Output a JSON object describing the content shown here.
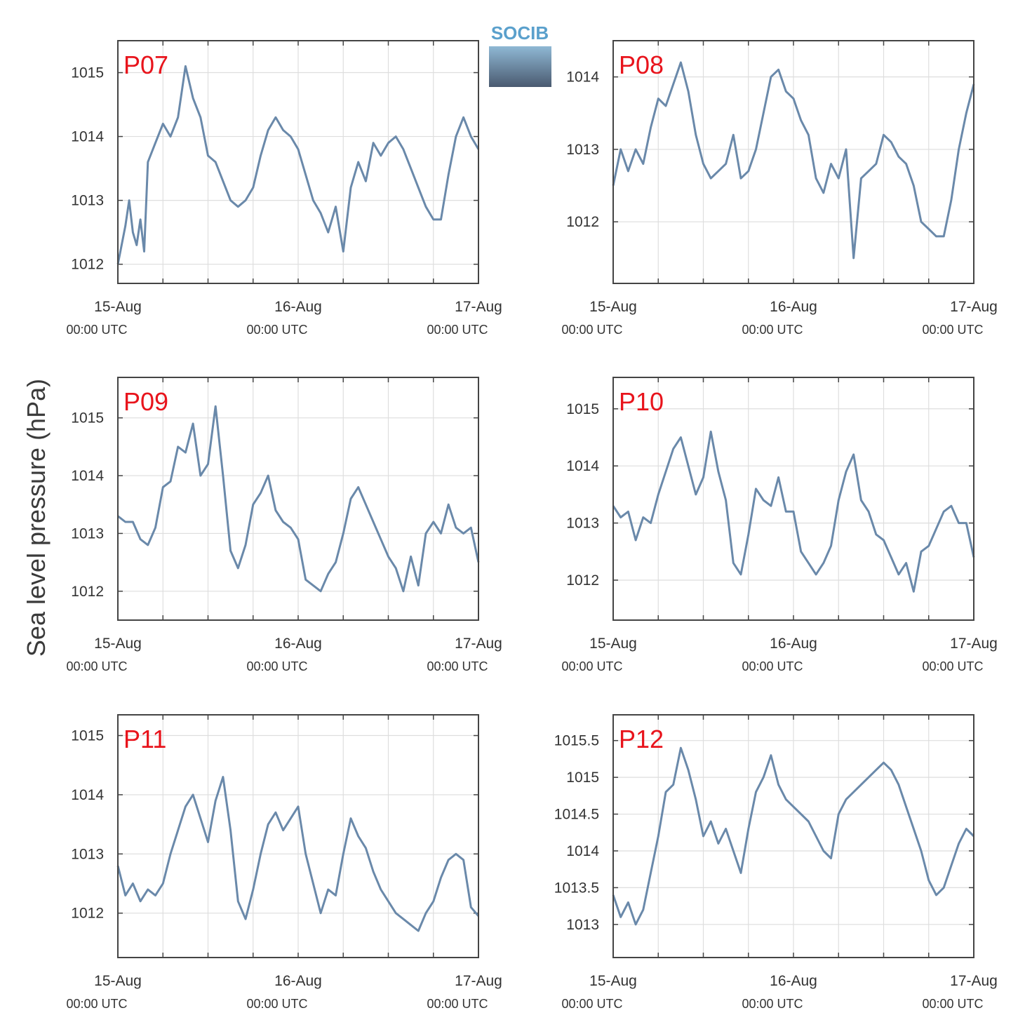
{
  "figure": {
    "ylabel": "Sea level pressure (hPa)",
    "logo_text": "SOCIB",
    "line_color": "#6a89aa",
    "label_color": "#e8141c",
    "grid_color": "#dedede"
  },
  "chart_data": [
    {
      "type": "line",
      "title": "P07",
      "xlabel": "",
      "ylabel": "Sea level pressure (hPa)",
      "xlim": [
        0,
        48
      ],
      "ylim": [
        1011.7,
        1015.5
      ],
      "grid": true,
      "x_ticks": [
        {
          "v": 0,
          "label": "15-Aug",
          "sub": "00:00 UTC"
        },
        {
          "v": 24,
          "label": "16-Aug",
          "sub": "00:00 UTC"
        },
        {
          "v": 48,
          "label": "17-Aug",
          "sub": "00:00 UTC"
        }
      ],
      "y_ticks": [
        {
          "v": 1012,
          "label": "1012"
        },
        {
          "v": 1013,
          "label": "1013"
        },
        {
          "v": 1014,
          "label": "1014"
        },
        {
          "v": 1015,
          "label": "1015"
        }
      ],
      "series": [
        {
          "x": [
            0,
            1,
            1.5,
            2,
            2.5,
            3,
            3.5,
            4,
            5,
            6,
            7,
            8,
            9,
            10,
            11,
            12,
            13,
            14,
            15,
            16,
            17,
            18,
            19,
            20,
            21,
            22,
            23,
            24,
            25,
            26,
            27,
            28,
            29,
            30,
            31,
            32,
            33,
            34,
            35,
            36,
            37,
            38,
            39,
            40,
            41,
            42,
            43,
            44,
            45,
            46,
            47,
            48
          ],
          "y": [
            1012.0,
            1012.6,
            1013.0,
            1012.5,
            1012.3,
            1012.7,
            1012.2,
            1013.6,
            1013.9,
            1014.2,
            1014.0,
            1014.3,
            1015.1,
            1014.6,
            1014.3,
            1013.7,
            1013.6,
            1013.3,
            1013.0,
            1012.9,
            1013.0,
            1013.2,
            1013.7,
            1014.1,
            1014.3,
            1014.1,
            1014.0,
            1013.8,
            1013.4,
            1013.0,
            1012.8,
            1012.5,
            1012.9,
            1012.2,
            1013.2,
            1013.6,
            1013.3,
            1013.9,
            1013.7,
            1013.9,
            1014.0,
            1013.8,
            1013.5,
            1013.2,
            1012.9,
            1012.7,
            1012.7,
            1013.4,
            1014.0,
            1014.3,
            1014.0,
            1013.8
          ]
        }
      ]
    },
    {
      "type": "line",
      "title": "P08",
      "xlabel": "",
      "ylabel": "Sea level pressure (hPa)",
      "xlim": [
        0,
        48
      ],
      "ylim": [
        1011.15,
        1014.5
      ],
      "grid": true,
      "x_ticks": [
        {
          "v": 0,
          "label": "15-Aug",
          "sub": "00:00 UTC"
        },
        {
          "v": 24,
          "label": "16-Aug",
          "sub": "00:00 UTC"
        },
        {
          "v": 48,
          "label": "17-Aug",
          "sub": "00:00 UTC"
        }
      ],
      "y_ticks": [
        {
          "v": 1012,
          "label": "1012"
        },
        {
          "v": 1013,
          "label": "1013"
        },
        {
          "v": 1014,
          "label": "1014"
        }
      ],
      "series": [
        {
          "x": [
            0,
            1,
            2,
            3,
            4,
            5,
            6,
            7,
            8,
            9,
            10,
            11,
            12,
            13,
            14,
            15,
            16,
            17,
            18,
            19,
            20,
            21,
            22,
            23,
            24,
            25,
            26,
            27,
            28,
            29,
            30,
            31,
            32,
            33,
            34,
            35,
            36,
            37,
            38,
            39,
            40,
            41,
            42,
            43,
            44,
            45,
            46,
            47,
            48
          ],
          "y": [
            1012.5,
            1013.0,
            1012.7,
            1013.0,
            1012.8,
            1013.3,
            1013.7,
            1013.6,
            1013.9,
            1014.2,
            1013.8,
            1013.2,
            1012.8,
            1012.6,
            1012.7,
            1012.8,
            1013.2,
            1012.6,
            1012.7,
            1013.0,
            1013.5,
            1014.0,
            1014.1,
            1013.8,
            1013.7,
            1013.4,
            1013.2,
            1012.6,
            1012.4,
            1012.8,
            1012.6,
            1013.0,
            1011.5,
            1012.6,
            1012.7,
            1012.8,
            1013.2,
            1013.1,
            1012.9,
            1012.8,
            1012.5,
            1012.0,
            1011.9,
            1011.8,
            1011.8,
            1012.3,
            1013.0,
            1013.5,
            1013.9
          ]
        }
      ]
    },
    {
      "type": "line",
      "title": "P09",
      "xlabel": "",
      "ylabel": "Sea level pressure (hPa)",
      "xlim": [
        0,
        48
      ],
      "ylim": [
        1011.5,
        1015.7
      ],
      "grid": true,
      "x_ticks": [
        {
          "v": 0,
          "label": "15-Aug",
          "sub": "00:00 UTC"
        },
        {
          "v": 24,
          "label": "16-Aug",
          "sub": "00:00 UTC"
        },
        {
          "v": 48,
          "label": "17-Aug",
          "sub": "00:00 UTC"
        }
      ],
      "y_ticks": [
        {
          "v": 1012,
          "label": "1012"
        },
        {
          "v": 1013,
          "label": "1013"
        },
        {
          "v": 1014,
          "label": "1014"
        },
        {
          "v": 1015,
          "label": "1015"
        }
      ],
      "series": [
        {
          "x": [
            0,
            1,
            2,
            3,
            4,
            5,
            6,
            7,
            8,
            9,
            10,
            11,
            12,
            13,
            14,
            15,
            16,
            17,
            18,
            19,
            20,
            21,
            22,
            23,
            24,
            25,
            26,
            27,
            28,
            29,
            30,
            31,
            32,
            33,
            34,
            35,
            36,
            37,
            38,
            39,
            40,
            41,
            42,
            43,
            44,
            45,
            46,
            47,
            48
          ],
          "y": [
            1013.3,
            1013.2,
            1013.2,
            1012.9,
            1012.8,
            1013.1,
            1013.8,
            1013.9,
            1014.5,
            1014.4,
            1014.9,
            1014.0,
            1014.2,
            1015.2,
            1014.0,
            1012.7,
            1012.4,
            1012.8,
            1013.5,
            1013.7,
            1014.0,
            1013.4,
            1013.2,
            1013.1,
            1012.9,
            1012.2,
            1012.1,
            1012.0,
            1012.3,
            1012.5,
            1013.0,
            1013.6,
            1013.8,
            1013.5,
            1013.2,
            1012.9,
            1012.6,
            1012.4,
            1012.0,
            1012.6,
            1012.1,
            1013.0,
            1013.2,
            1013.0,
            1013.5,
            1013.1,
            1013.0,
            1013.1,
            1012.5
          ]
        }
      ]
    },
    {
      "type": "line",
      "title": "P10",
      "xlabel": "",
      "ylabel": "Sea level pressure (hPa)",
      "xlim": [
        0,
        48
      ],
      "ylim": [
        1011.3,
        1015.55
      ],
      "grid": true,
      "x_ticks": [
        {
          "v": 0,
          "label": "15-Aug",
          "sub": "00:00 UTC"
        },
        {
          "v": 24,
          "label": "16-Aug",
          "sub": "00:00 UTC"
        },
        {
          "v": 48,
          "label": "17-Aug",
          "sub": "00:00 UTC"
        }
      ],
      "y_ticks": [
        {
          "v": 1012,
          "label": "1012"
        },
        {
          "v": 1013,
          "label": "1013"
        },
        {
          "v": 1014,
          "label": "1014"
        },
        {
          "v": 1015,
          "label": "1015"
        }
      ],
      "series": [
        {
          "x": [
            0,
            1,
            2,
            3,
            4,
            5,
            6,
            7,
            8,
            9,
            10,
            11,
            12,
            13,
            14,
            15,
            16,
            17,
            18,
            19,
            20,
            21,
            22,
            23,
            24,
            25,
            26,
            27,
            28,
            29,
            30,
            31,
            32,
            33,
            34,
            35,
            36,
            37,
            38,
            39,
            40,
            41,
            42,
            43,
            44,
            45,
            46,
            47,
            48
          ],
          "y": [
            1013.3,
            1013.1,
            1013.2,
            1012.7,
            1013.1,
            1013.0,
            1013.5,
            1013.9,
            1014.3,
            1014.5,
            1014.0,
            1013.5,
            1013.8,
            1014.6,
            1013.9,
            1013.4,
            1012.3,
            1012.1,
            1012.8,
            1013.6,
            1013.4,
            1013.3,
            1013.8,
            1013.2,
            1013.2,
            1012.5,
            1012.3,
            1012.1,
            1012.3,
            1012.6,
            1013.4,
            1013.9,
            1014.2,
            1013.4,
            1013.2,
            1012.8,
            1012.7,
            1012.4,
            1012.1,
            1012.3,
            1011.8,
            1012.5,
            1012.6,
            1012.9,
            1013.2,
            1013.3,
            1013.0,
            1013.0,
            1012.4
          ]
        }
      ]
    },
    {
      "type": "line",
      "title": "P11",
      "xlabel": "",
      "ylabel": "Sea level pressure (hPa)",
      "xlim": [
        0,
        48
      ],
      "ylim": [
        1011.25,
        1015.35
      ],
      "grid": true,
      "x_ticks": [
        {
          "v": 0,
          "label": "15-Aug",
          "sub": "00:00 UTC"
        },
        {
          "v": 24,
          "label": "16-Aug",
          "sub": "00:00 UTC"
        },
        {
          "v": 48,
          "label": "17-Aug",
          "sub": "00:00 UTC"
        }
      ],
      "y_ticks": [
        {
          "v": 1012,
          "label": "1012"
        },
        {
          "v": 1013,
          "label": "1013"
        },
        {
          "v": 1014,
          "label": "1014"
        },
        {
          "v": 1015,
          "label": "1015"
        }
      ],
      "series": [
        {
          "x": [
            0,
            1,
            2,
            3,
            4,
            5,
            6,
            7,
            8,
            9,
            10,
            11,
            12,
            13,
            14,
            15,
            16,
            17,
            18,
            19,
            20,
            21,
            22,
            23,
            24,
            25,
            26,
            27,
            28,
            29,
            30,
            31,
            32,
            33,
            34,
            35,
            36,
            37,
            38,
            39,
            40,
            41,
            42,
            43,
            44,
            45,
            46,
            47,
            48
          ],
          "y": [
            1012.8,
            1012.3,
            1012.5,
            1012.2,
            1012.4,
            1012.3,
            1012.5,
            1013.0,
            1013.4,
            1013.8,
            1014.0,
            1013.6,
            1013.2,
            1013.9,
            1014.3,
            1013.4,
            1012.2,
            1011.9,
            1012.4,
            1013.0,
            1013.5,
            1013.7,
            1013.4,
            1013.6,
            1013.8,
            1013.0,
            1012.5,
            1012.0,
            1012.4,
            1012.3,
            1013.0,
            1013.6,
            1013.3,
            1013.1,
            1012.7,
            1012.4,
            1012.2,
            1012.0,
            1011.9,
            1011.8,
            1011.7,
            1012.0,
            1012.2,
            1012.6,
            1012.9,
            1013.0,
            1012.9,
            1012.1,
            1011.95
          ]
        }
      ]
    },
    {
      "type": "line",
      "title": "P12",
      "xlabel": "",
      "ylabel": "Sea level pressure (hPa)",
      "xlim": [
        0,
        48
      ],
      "ylim": [
        1012.55,
        1015.85
      ],
      "grid": true,
      "x_ticks": [
        {
          "v": 0,
          "label": "15-Aug",
          "sub": "00:00 UTC"
        },
        {
          "v": 24,
          "label": "16-Aug",
          "sub": "00:00 UTC"
        },
        {
          "v": 48,
          "label": "17-Aug",
          "sub": "00:00 UTC"
        }
      ],
      "y_ticks": [
        {
          "v": 1013,
          "label": "1013"
        },
        {
          "v": 1013.5,
          "label": "1013.5"
        },
        {
          "v": 1014,
          "label": "1014"
        },
        {
          "v": 1014.5,
          "label": "1014.5"
        },
        {
          "v": 1015,
          "label": "1015"
        },
        {
          "v": 1015.5,
          "label": "1015.5"
        }
      ],
      "series": [
        {
          "x": [
            0,
            1,
            2,
            3,
            4,
            5,
            6,
            7,
            8,
            9,
            10,
            11,
            12,
            13,
            14,
            15,
            16,
            17,
            18,
            19,
            20,
            21,
            22,
            23,
            24,
            25,
            26,
            27,
            28,
            29,
            30,
            31,
            32,
            33,
            34,
            35,
            36,
            37,
            38,
            39,
            40,
            41,
            42,
            43,
            44,
            45,
            46,
            47,
            48
          ],
          "y": [
            1013.4,
            1013.1,
            1013.3,
            1013.0,
            1013.2,
            1013.7,
            1014.2,
            1014.8,
            1014.9,
            1015.4,
            1015.1,
            1014.7,
            1014.2,
            1014.4,
            1014.1,
            1014.3,
            1014.0,
            1013.7,
            1014.3,
            1014.8,
            1015.0,
            1015.3,
            1014.9,
            1014.7,
            1014.6,
            1014.5,
            1014.4,
            1014.2,
            1014.0,
            1013.9,
            1014.5,
            1014.7,
            1014.8,
            1014.9,
            1015.0,
            1015.1,
            1015.2,
            1015.1,
            1014.9,
            1014.6,
            1014.3,
            1014.0,
            1013.6,
            1013.4,
            1013.5,
            1013.8,
            1014.1,
            1014.3,
            1014.2
          ]
        }
      ]
    }
  ]
}
